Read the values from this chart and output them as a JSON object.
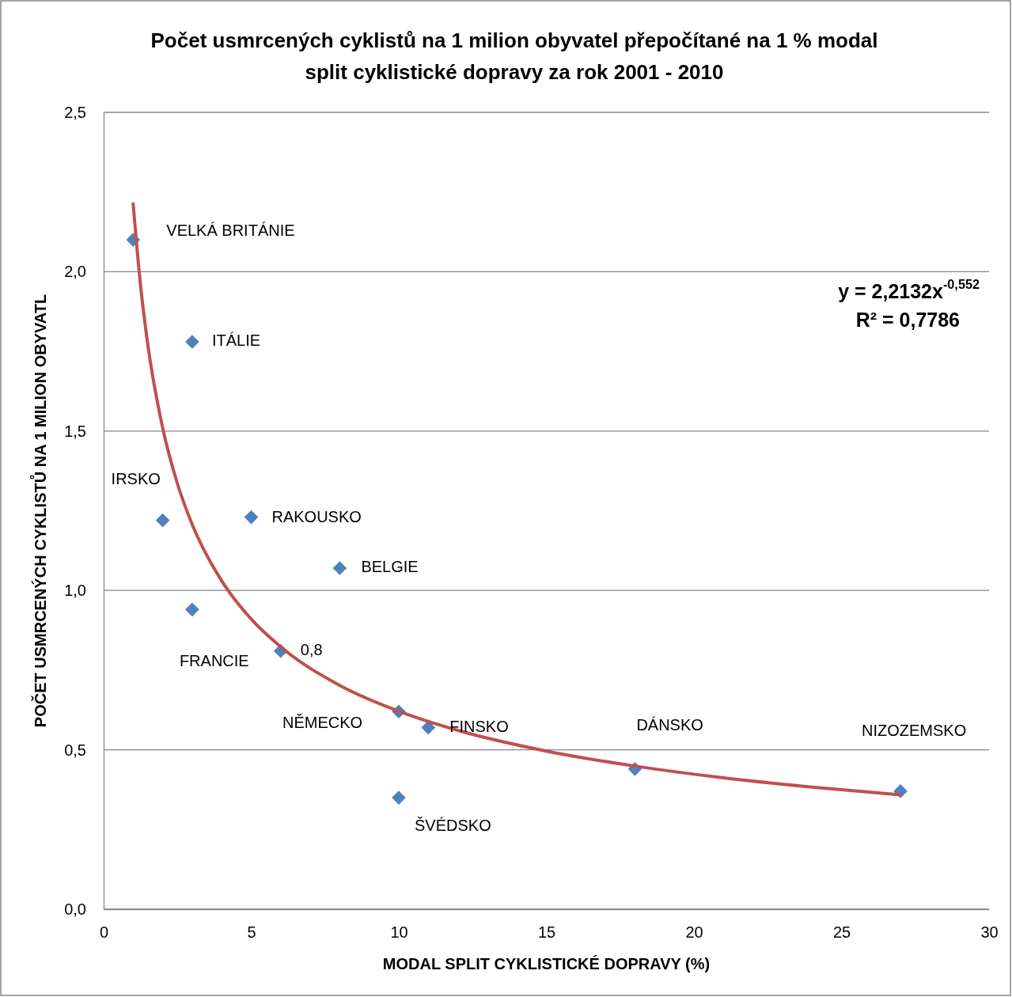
{
  "chart_data": {
    "type": "scatter",
    "title": "Počet usmrcených cyklistů na 1 milion obyvatel přepočítané na 1 % modal split cyklistické dopravy za rok 2001 - 2010",
    "xlabel": "MODAL SPLIT CYKLISTICKÉ DOPRAVY (%)",
    "ylabel": "POČET USMRCENÝCH CYKLISTŮ NA 1 MILION OBYVATL",
    "xlim": [
      0,
      30
    ],
    "xticks": [
      0,
      5,
      10,
      15,
      20,
      25,
      30
    ],
    "ylim": [
      0,
      2.5
    ],
    "yticks": [
      {
        "value": 0,
        "label": "0,0"
      },
      {
        "value": 0.5,
        "label": "0,5"
      },
      {
        "value": 1,
        "label": "1,0"
      },
      {
        "value": 1.5,
        "label": "1,5"
      },
      {
        "value": 2,
        "label": "2,0"
      },
      {
        "value": 2.5,
        "label": "2,5"
      }
    ],
    "grid": "y",
    "legend": false,
    "series": [
      {
        "marker": "diamond",
        "color": "#4f81bd",
        "x": [
          1,
          3,
          2,
          5,
          8,
          3,
          6,
          10,
          11,
          10,
          18,
          27
        ],
        "values": [
          2.1,
          1.78,
          1.22,
          1.23,
          1.07,
          0.94,
          0.81,
          0.62,
          0.57,
          0.35,
          0.44,
          0.37
        ]
      },
      {
        "type": "line",
        "color": "#c0504d",
        "x": [
          1,
          1.25,
          1.5,
          2,
          2.5,
          3,
          4,
          5,
          6,
          8,
          10,
          12,
          15,
          18,
          21,
          24,
          27
        ],
        "values": [
          2.213,
          1.957,
          1.769,
          1.51,
          1.335,
          1.207,
          1.03,
          0.91,
          0.823,
          0.702,
          0.621,
          0.561,
          0.496,
          0.449,
          0.412,
          0.383,
          0.359
        ]
      }
    ],
    "annotations": [
      {
        "text": "VELKÁ BRITÁNIE",
        "x": 1,
        "y": 2.1
      },
      {
        "text": "ITÁLIE",
        "x": 3,
        "y": 1.78
      },
      {
        "text": "IRSKO",
        "x": 2,
        "y": 1.22
      },
      {
        "text": "RAKOUSKO",
        "x": 5,
        "y": 1.23
      },
      {
        "text": "BELGIE",
        "x": 8,
        "y": 1.07
      },
      {
        "text": "FRANCIE",
        "x": 3,
        "y": 0.94
      },
      {
        "text": "0,8",
        "x": 6,
        "y": 0.81
      },
      {
        "text": "NĚMECKO",
        "x": 10,
        "y": 0.62
      },
      {
        "text": "FINSKO",
        "x": 11,
        "y": 0.57
      },
      {
        "text": "DÁNSKO",
        "x": 18,
        "y": 0.44
      },
      "NIZOZEMSKO",
      {
        "text": "ŠVÉDSKO",
        "x": 10,
        "y": 0.35
      },
      "y = 2,2132x$^{-0,552}$",
      "R² = 0,7786"
    ]
  }
}
